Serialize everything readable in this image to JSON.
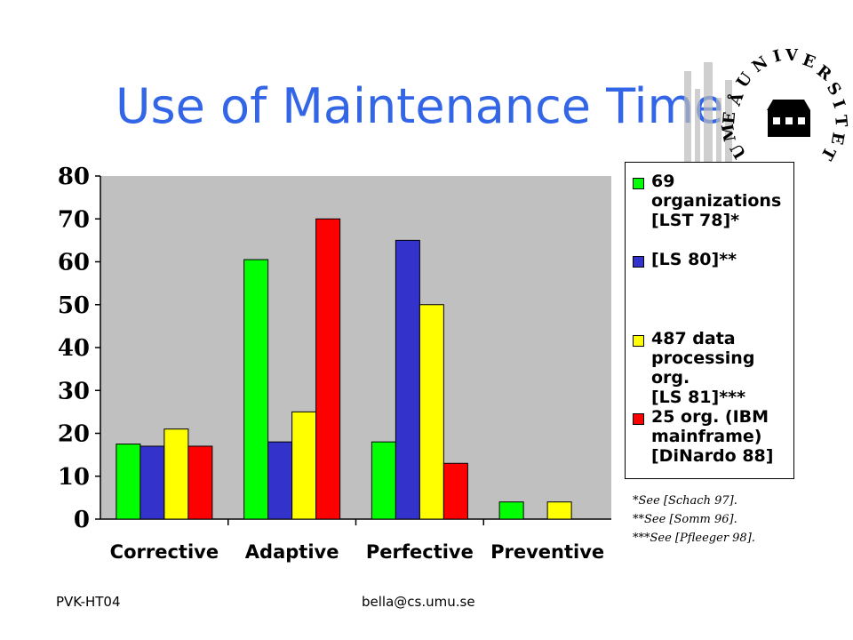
{
  "slide": {
    "title": "Use of Maintenance Time",
    "footer_left": "PVK-HT04",
    "footer_center": "bella@cs.umu.se",
    "logo_text": "UMEÅ UNIVERSITET"
  },
  "chart_data": {
    "type": "bar",
    "categories": [
      "Corrective",
      "Adaptive",
      "Perfective",
      "Preventive"
    ],
    "series": [
      {
        "name": "69 organizations [LST 78]*",
        "color": "#00ff00",
        "values": [
          17.5,
          60.5,
          18,
          4
        ]
      },
      {
        "name": "[LS 80]**",
        "color": "#3333cc",
        "values": [
          17,
          18,
          65,
          null
        ]
      },
      {
        "name": "487 data processing org. [LS 81]***",
        "color": "#ffff00",
        "values": [
          21,
          25,
          50,
          4
        ]
      },
      {
        "name": "25 org. (IBM mainframe) [DiNardo 88]",
        "color": "#ff0000",
        "values": [
          17,
          70,
          13,
          null
        ]
      }
    ],
    "ylim": [
      0,
      80
    ],
    "yticks": [
      0,
      10,
      20,
      30,
      40,
      50,
      60,
      70,
      80
    ],
    "grid": false,
    "legend_position": "right",
    "legend_labels": [
      "69\norganizations\n[LST 78]*",
      "[LS 80]**",
      "487 data\nprocessing org.\n[LS 81]***",
      "25 org. (IBM\nmainframe)\n[DiNardo 88]"
    ],
    "footnotes": [
      "*See [Schach 97].",
      "**See [Somm 96].",
      "***See [Pfleeger 98]."
    ]
  }
}
